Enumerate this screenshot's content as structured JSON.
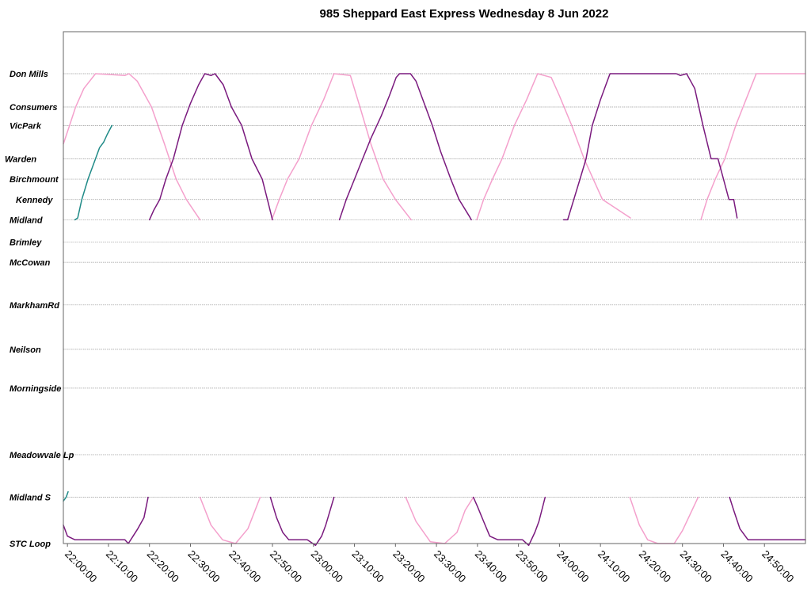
{
  "chart_data": {
    "type": "line",
    "title": "985 Sheppard East Express Wednesday 8 Jun 2022",
    "xlabel": "",
    "ylabel": "",
    "x_unit": "elapsed time (h:mm:ss, service day)",
    "xlim": [
      "21:59:00",
      "25:00:00"
    ],
    "x_ticks": [
      "22:00:00",
      "22:10:00",
      "22:20:00",
      "22:30:00",
      "22:40:00",
      "22:50:00",
      "23:00:00",
      "23:10:00",
      "23:20:00",
      "23:30:00",
      "23:40:00",
      "23:50:00",
      "24:00:00",
      "24:10:00",
      "24:20:00",
      "24:30:00",
      "24:40:00",
      "24:50:00"
    ],
    "stops": [
      {
        "name": "Don Mills",
        "km": 0.0
      },
      {
        "name": "Consumers",
        "km": 0.9
      },
      {
        "name": "VicPark",
        "km": 1.4
      },
      {
        "name": "Warden",
        "km": 2.3
      },
      {
        "name": "Birchmount",
        "km": 2.85
      },
      {
        "name": "Kennedy",
        "km": 3.4
      },
      {
        "name": "Midland",
        "km": 3.95
      },
      {
        "name": "Brimley",
        "km": 4.55
      },
      {
        "name": "McCowan",
        "km": 5.1
      },
      {
        "name": "MarkhamRd",
        "km": 6.25
      },
      {
        "name": "Neilson",
        "km": 7.45
      },
      {
        "name": "Morningside",
        "km": 8.5
      },
      {
        "name": "Meadowvale Lp",
        "km": 10.3
      },
      {
        "name": "Midland S",
        "km": 11.45
      },
      {
        "name": "STC Loop",
        "km": 12.7
      }
    ],
    "grid": "horizontal lines at stops",
    "legend": "none",
    "colors": {
      "pink": "#f4a0cc",
      "purple": "#7a1a7e",
      "teal": "#1f8a87"
    },
    "series": [
      {
        "color": "#1f8a87",
        "segments": [
          [
            [
              "22:01:50",
              3.95
            ],
            [
              "22:02:30",
              3.9
            ],
            [
              "22:03:30",
              3.4
            ],
            [
              "22:05:00",
              2.85
            ],
            [
              "22:06:50",
              2.3
            ],
            [
              "22:07:50",
              2.0
            ],
            [
              "22:08:50",
              1.85
            ],
            [
              "22:09:40",
              1.65
            ],
            [
              "22:10:50",
              1.4
            ]
          ],
          [
            [
              "21:59:00",
              11.55
            ],
            [
              "21:59:40",
              11.45
            ],
            [
              "22:00:10",
              11.3
            ]
          ]
        ]
      },
      {
        "color": "#f4a0cc",
        "segments": [
          [
            [
              "21:59:00",
              1.9
            ],
            [
              "22:00:30",
              1.4
            ],
            [
              "22:02:00",
              0.9
            ],
            [
              "22:04:00",
              0.4
            ],
            [
              "22:06:50",
              0.0
            ],
            [
              "22:14:00",
              0.05
            ],
            [
              "22:15:00",
              0.0
            ],
            [
              "22:17:00",
              0.2
            ],
            [
              "22:20:30",
              0.9
            ],
            [
              "22:23:40",
              1.9
            ],
            [
              "22:26:30",
              2.85
            ],
            [
              "22:29:00",
              3.4
            ],
            [
              "22:32:20",
              3.95
            ]
          ],
          [
            [
              "22:32:20",
              11.45
            ],
            [
              "22:35:00",
              12.2
            ],
            [
              "22:37:50",
              12.6
            ],
            [
              "22:41:00",
              12.7
            ],
            [
              "22:44:00",
              12.3
            ],
            [
              "22:47:00",
              11.45
            ]
          ],
          [
            [
              "22:49:50",
              3.95
            ],
            [
              "22:51:40",
              3.4
            ],
            [
              "22:53:40",
              2.85
            ],
            [
              "22:56:30",
              2.3
            ],
            [
              "22:59:30",
              1.4
            ],
            [
              "23:02:30",
              0.7
            ],
            [
              "23:05:00",
              0.0
            ],
            [
              "23:09:00",
              0.05
            ],
            [
              "23:11:20",
              0.9
            ],
            [
              "23:14:00",
              1.9
            ],
            [
              "23:17:00",
              2.85
            ],
            [
              "23:20:00",
              3.4
            ],
            [
              "23:23:50",
              3.95
            ]
          ],
          [
            [
              "23:22:30",
              11.45
            ],
            [
              "23:25:00",
              12.1
            ],
            [
              "23:28:30",
              12.65
            ],
            [
              "23:32:00",
              12.7
            ],
            [
              "23:35:00",
              12.4
            ],
            [
              "23:37:00",
              11.8
            ],
            [
              "23:39:00",
              11.45
            ]
          ],
          [
            [
              "23:39:50",
              3.95
            ],
            [
              "23:41:30",
              3.4
            ],
            [
              "23:43:40",
              2.85
            ],
            [
              "23:46:00",
              2.3
            ],
            [
              "23:49:00",
              1.4
            ],
            [
              "23:52:00",
              0.7
            ],
            [
              "23:54:40",
              0.0
            ],
            [
              "23:58:00",
              0.1
            ],
            [
              "24:00:00",
              0.6
            ],
            [
              "24:03:00",
              1.4
            ],
            [
              "24:06:00",
              2.3
            ],
            [
              "24:10:30",
              3.4
            ],
            [
              "24:17:20",
              3.9
            ]
          ],
          [
            [
              "24:17:10",
              11.45
            ],
            [
              "24:19:30",
              12.2
            ],
            [
              "24:21:30",
              12.6
            ],
            [
              "24:24:00",
              12.7
            ],
            [
              "24:28:00",
              12.7
            ],
            [
              "24:30:00",
              12.35
            ],
            [
              "24:33:50",
              11.45
            ]
          ],
          [
            [
              "24:34:30",
              3.95
            ],
            [
              "24:36:00",
              3.4
            ],
            [
              "24:38:00",
              2.85
            ],
            [
              "24:40:20",
              2.3
            ],
            [
              "24:43:00",
              1.4
            ],
            [
              "24:45:30",
              0.7
            ],
            [
              "24:48:00",
              0.0
            ],
            [
              "25:00:00",
              0.0
            ]
          ]
        ]
      },
      {
        "color": "#7a1a7e",
        "segments": [
          [
            [
              "21:59:00",
              12.2
            ],
            [
              "22:00:00",
              12.5
            ],
            [
              "22:01:50",
              12.6
            ],
            [
              "22:14:00",
              12.6
            ],
            [
              "22:14:50",
              12.7
            ],
            [
              "22:16:00",
              12.5
            ],
            [
              "22:17:10",
              12.3
            ],
            [
              "22:18:40",
              12.0
            ],
            [
              "22:19:40",
              11.45
            ]
          ],
          [
            [
              "22:20:00",
              3.95
            ],
            [
              "22:21:00",
              3.7
            ],
            [
              "22:22:30",
              3.4
            ],
            [
              "22:24:00",
              2.85
            ],
            [
              "22:25:50",
              2.3
            ],
            [
              "22:28:00",
              1.4
            ],
            [
              "22:30:00",
              0.8
            ],
            [
              "22:32:00",
              0.3
            ],
            [
              "22:33:30",
              0.0
            ],
            [
              "22:35:00",
              0.05
            ],
            [
              "22:36:00",
              0.0
            ],
            [
              "22:38:00",
              0.3
            ],
            [
              "22:40:00",
              0.9
            ],
            [
              "22:42:30",
              1.4
            ],
            [
              "22:45:00",
              2.3
            ],
            [
              "22:47:30",
              2.85
            ],
            [
              "22:49:00",
              3.5
            ],
            [
              "22:50:00",
              3.95
            ]
          ],
          [
            [
              "22:49:30",
              11.45
            ],
            [
              "22:51:00",
              12.0
            ],
            [
              "22:52:30",
              12.4
            ],
            [
              "22:54:00",
              12.6
            ],
            [
              "22:58:30",
              12.6
            ],
            [
              "23:00:30",
              12.75
            ],
            [
              "23:02:00",
              12.5
            ],
            [
              "23:03:00",
              12.2
            ],
            [
              "23:05:00",
              11.45
            ]
          ],
          [
            [
              "23:06:20",
              3.95
            ],
            [
              "23:08:00",
              3.4
            ],
            [
              "23:10:00",
              2.85
            ],
            [
              "23:12:00",
              2.3
            ],
            [
              "23:14:00",
              1.75
            ],
            [
              "23:16:30",
              1.15
            ],
            [
              "23:18:30",
              0.6
            ],
            [
              "23:20:10",
              0.1
            ],
            [
              "23:21:00",
              0.0
            ],
            [
              "23:23:40",
              0.0
            ],
            [
              "23:25:00",
              0.2
            ],
            [
              "23:27:00",
              0.8
            ],
            [
              "23:29:00",
              1.4
            ],
            [
              "23:31:00",
              2.1
            ],
            [
              "23:33:30",
              2.85
            ],
            [
              "23:35:30",
              3.4
            ],
            [
              "23:38:00",
              3.85
            ],
            [
              "23:38:30",
              3.95
            ]
          ],
          [
            [
              "23:39:00",
              11.45
            ],
            [
              "23:40:00",
              11.7
            ],
            [
              "23:41:30",
              12.1
            ],
            [
              "23:43:00",
              12.5
            ],
            [
              "23:45:00",
              12.6
            ],
            [
              "23:51:00",
              12.6
            ],
            [
              "23:52:30",
              12.75
            ],
            [
              "23:54:00",
              12.4
            ],
            [
              "23:55:00",
              12.1
            ],
            [
              "23:56:30",
              11.45
            ]
          ],
          [
            [
              "24:01:00",
              3.95
            ],
            [
              "24:02:00",
              3.95
            ],
            [
              "24:03:30",
              3.4
            ],
            [
              "24:05:00",
              2.85
            ],
            [
              "24:06:30",
              2.3
            ],
            [
              "24:08:00",
              1.4
            ],
            [
              "24:10:00",
              0.7
            ],
            [
              "24:12:20",
              0.0
            ],
            [
              "24:28:30",
              0.0
            ],
            [
              "24:29:30",
              0.05
            ],
            [
              "24:31:00",
              0.0
            ],
            [
              "24:33:00",
              0.4
            ],
            [
              "24:35:00",
              1.4
            ],
            [
              "24:37:00",
              2.3
            ],
            [
              "24:38:40",
              2.3
            ],
            [
              "24:40:00",
              2.85
            ],
            [
              "24:41:20",
              3.4
            ],
            [
              "24:42:30",
              3.4
            ],
            [
              "24:43:20",
              3.9
            ]
          ],
          [
            [
              "24:41:30",
              11.45
            ],
            [
              "24:42:30",
              11.8
            ],
            [
              "24:44:00",
              12.3
            ],
            [
              "24:46:00",
              12.6
            ],
            [
              "25:00:00",
              12.6
            ]
          ]
        ]
      }
    ]
  }
}
